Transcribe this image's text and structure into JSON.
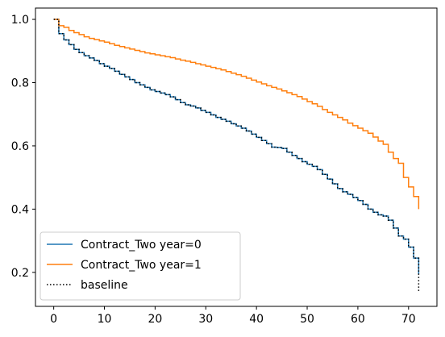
{
  "chart_data": {
    "type": "line",
    "title": "",
    "xlabel": "",
    "ylabel": "",
    "xlim": [
      -3.6,
      75.6
    ],
    "ylim": [
      0.0925,
      1.0358
    ],
    "xticks": [
      0,
      10,
      20,
      30,
      40,
      50,
      60,
      70
    ],
    "yticks": [
      0.2,
      0.4,
      0.6,
      0.8,
      1.0
    ],
    "xtick_labels": [
      "0",
      "10",
      "20",
      "30",
      "40",
      "50",
      "60",
      "70"
    ],
    "ytick_labels": [
      "0.2",
      "0.4",
      "0.6",
      "0.8",
      "1.0"
    ],
    "grid": false,
    "legend_position": "lower-left",
    "series": [
      {
        "name": "Contract_Two year=0",
        "color": "#1f77b4",
        "style": "step",
        "x": [
          0,
          1,
          2,
          3,
          4,
          5,
          6,
          7,
          8,
          9,
          10,
          11,
          12,
          13,
          14,
          15,
          16,
          17,
          18,
          19,
          20,
          21,
          22,
          23,
          24,
          25,
          26,
          27,
          28,
          29,
          30,
          31,
          32,
          33,
          34,
          35,
          36,
          37,
          38,
          39,
          40,
          41,
          42,
          43,
          44,
          45,
          46,
          47,
          48,
          49,
          50,
          51,
          52,
          53,
          54,
          55,
          56,
          57,
          58,
          59,
          60,
          61,
          62,
          63,
          64,
          65,
          66,
          67,
          68,
          69,
          70,
          71,
          72
        ],
        "y": [
          1.0,
          0.955,
          0.935,
          0.92,
          0.905,
          0.895,
          0.885,
          0.878,
          0.87,
          0.86,
          0.852,
          0.845,
          0.836,
          0.826,
          0.818,
          0.81,
          0.8,
          0.793,
          0.785,
          0.777,
          0.772,
          0.767,
          0.762,
          0.755,
          0.746,
          0.737,
          0.73,
          0.726,
          0.72,
          0.712,
          0.706,
          0.698,
          0.69,
          0.684,
          0.678,
          0.67,
          0.663,
          0.656,
          0.647,
          0.637,
          0.627,
          0.617,
          0.607,
          0.596,
          0.595,
          0.592,
          0.58,
          0.57,
          0.56,
          0.55,
          0.542,
          0.535,
          0.525,
          0.51,
          0.495,
          0.48,
          0.465,
          0.455,
          0.447,
          0.437,
          0.427,
          0.415,
          0.4,
          0.39,
          0.382,
          0.378,
          0.365,
          0.34,
          0.315,
          0.305,
          0.28,
          0.245,
          0.195
        ]
      },
      {
        "name": "Contract_Two year=1",
        "color": "#ff7f0e",
        "style": "step",
        "x": [
          0,
          1,
          2,
          3,
          4,
          5,
          6,
          7,
          8,
          9,
          10,
          11,
          12,
          13,
          14,
          15,
          16,
          17,
          18,
          19,
          20,
          21,
          22,
          23,
          24,
          25,
          26,
          27,
          28,
          29,
          30,
          31,
          32,
          33,
          34,
          35,
          36,
          37,
          38,
          39,
          40,
          41,
          42,
          43,
          44,
          45,
          46,
          47,
          48,
          49,
          50,
          51,
          52,
          53,
          54,
          55,
          56,
          57,
          58,
          59,
          60,
          61,
          62,
          63,
          64,
          65,
          66,
          67,
          68,
          69,
          70,
          71,
          72
        ],
        "y": [
          1.0,
          0.98,
          0.975,
          0.965,
          0.958,
          0.952,
          0.945,
          0.94,
          0.936,
          0.932,
          0.928,
          0.923,
          0.918,
          0.914,
          0.91,
          0.906,
          0.902,
          0.898,
          0.894,
          0.891,
          0.888,
          0.885,
          0.882,
          0.879,
          0.875,
          0.871,
          0.868,
          0.864,
          0.86,
          0.856,
          0.852,
          0.848,
          0.844,
          0.84,
          0.835,
          0.83,
          0.825,
          0.82,
          0.814,
          0.808,
          0.802,
          0.796,
          0.79,
          0.785,
          0.78,
          0.774,
          0.768,
          0.762,
          0.756,
          0.748,
          0.74,
          0.733,
          0.725,
          0.715,
          0.706,
          0.698,
          0.69,
          0.682,
          0.672,
          0.664,
          0.656,
          0.648,
          0.64,
          0.628,
          0.615,
          0.605,
          0.58,
          0.56,
          0.545,
          0.5,
          0.47,
          0.44,
          0.4
        ]
      },
      {
        "name": "baseline",
        "color": "#000000",
        "style": "step-dotted",
        "x": [
          0,
          1,
          2,
          3,
          4,
          5,
          6,
          7,
          8,
          9,
          10,
          11,
          12,
          13,
          14,
          15,
          16,
          17,
          18,
          19,
          20,
          21,
          22,
          23,
          24,
          25,
          26,
          27,
          28,
          29,
          30,
          31,
          32,
          33,
          34,
          35,
          36,
          37,
          38,
          39,
          40,
          41,
          42,
          43,
          44,
          45,
          46,
          47,
          48,
          49,
          50,
          51,
          52,
          53,
          54,
          55,
          56,
          57,
          58,
          59,
          60,
          61,
          62,
          63,
          64,
          65,
          66,
          67,
          68,
          69,
          70,
          71,
          72
        ],
        "y": [
          1.0,
          0.955,
          0.935,
          0.92,
          0.905,
          0.895,
          0.885,
          0.878,
          0.87,
          0.86,
          0.852,
          0.845,
          0.836,
          0.826,
          0.818,
          0.81,
          0.8,
          0.793,
          0.785,
          0.777,
          0.772,
          0.767,
          0.762,
          0.755,
          0.746,
          0.737,
          0.73,
          0.726,
          0.72,
          0.712,
          0.706,
          0.698,
          0.69,
          0.684,
          0.678,
          0.67,
          0.663,
          0.656,
          0.647,
          0.637,
          0.627,
          0.617,
          0.607,
          0.596,
          0.595,
          0.592,
          0.58,
          0.57,
          0.56,
          0.55,
          0.542,
          0.535,
          0.525,
          0.51,
          0.495,
          0.48,
          0.465,
          0.455,
          0.447,
          0.437,
          0.427,
          0.415,
          0.4,
          0.39,
          0.382,
          0.378,
          0.365,
          0.34,
          0.315,
          0.305,
          0.28,
          0.245,
          0.14
        ]
      }
    ]
  }
}
